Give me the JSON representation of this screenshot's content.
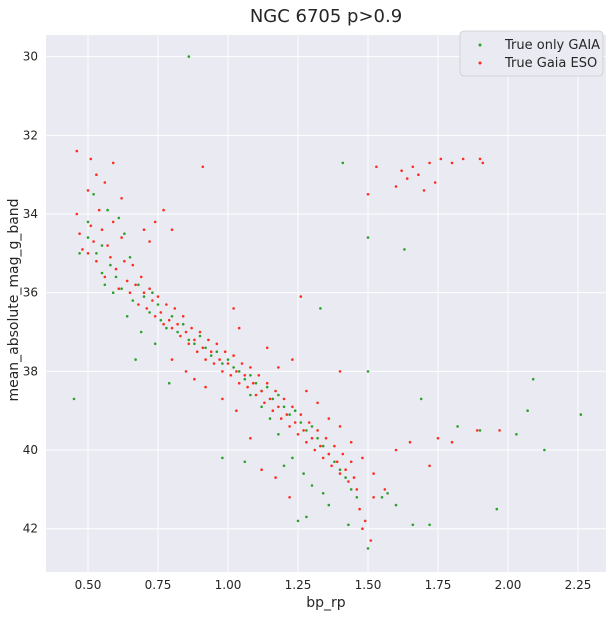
{
  "chart_data": {
    "type": "scatter",
    "title": "NGC 6705 p>0.9",
    "xlabel": "bp_rp",
    "ylabel": "mean_absolute_mag_g_band",
    "xlim": [
      0.35,
      2.35
    ],
    "ylim": [
      43.1,
      29.45
    ],
    "y_inverted": true,
    "x_ticks": [
      0.5,
      0.75,
      1.0,
      1.25,
      1.5,
      1.75,
      2.0,
      2.25
    ],
    "x_tick_labels": [
      "0.50",
      "0.75",
      "1.00",
      "1.25",
      "1.50",
      "1.75",
      "2.00",
      "2.25"
    ],
    "y_ticks": [
      30,
      32,
      34,
      36,
      38,
      40,
      42
    ],
    "y_tick_labels": [
      "30",
      "32",
      "34",
      "36",
      "38",
      "40",
      "42"
    ],
    "grid": true,
    "background": "#eaeaf2",
    "legend_position": "top-right",
    "series": [
      {
        "name": "True only GAIA",
        "color": "#2ca02c",
        "points": [
          [
            0.86,
            30.0
          ],
          [
            0.45,
            38.7
          ],
          [
            0.67,
            37.7
          ],
          [
            0.79,
            38.3
          ],
          [
            0.98,
            40.2
          ],
          [
            1.06,
            40.3
          ],
          [
            1.33,
            36.4
          ],
          [
            1.41,
            32.7
          ],
          [
            1.5,
            34.6
          ],
          [
            1.5,
            38.0
          ],
          [
            1.63,
            34.9
          ],
          [
            1.69,
            38.7
          ],
          [
            1.82,
            39.4
          ],
          [
            1.9,
            39.5
          ],
          [
            1.96,
            41.5
          ],
          [
            2.03,
            39.6
          ],
          [
            2.07,
            39.0
          ],
          [
            2.09,
            38.2
          ],
          [
            2.13,
            40.0
          ],
          [
            2.26,
            39.1
          ],
          [
            1.72,
            41.9
          ],
          [
            1.66,
            41.9
          ],
          [
            1.6,
            41.4
          ],
          [
            1.5,
            42.5
          ],
          [
            1.57,
            41.1
          ],
          [
            1.25,
            41.8
          ],
          [
            1.28,
            41.7
          ],
          [
            1.43,
            41.9
          ],
          [
            1.55,
            41.2
          ],
          [
            0.5,
            34.2
          ],
          [
            0.5,
            34.6
          ],
          [
            0.53,
            35.0
          ],
          [
            0.55,
            34.8
          ],
          [
            0.58,
            35.3
          ],
          [
            0.6,
            35.6
          ],
          [
            0.62,
            35.9
          ],
          [
            0.63,
            34.5
          ],
          [
            0.65,
            35.1
          ],
          [
            0.66,
            36.2
          ],
          [
            0.68,
            35.8
          ],
          [
            0.7,
            36.1
          ],
          [
            0.72,
            36.5
          ],
          [
            0.73,
            36.0
          ],
          [
            0.75,
            36.3
          ],
          [
            0.76,
            36.7
          ],
          [
            0.78,
            36.9
          ],
          [
            0.8,
            36.6
          ],
          [
            0.82,
            37.0
          ],
          [
            0.84,
            36.8
          ],
          [
            0.86,
            37.2
          ],
          [
            0.88,
            37.3
          ],
          [
            0.9,
            37.1
          ],
          [
            0.92,
            37.4
          ],
          [
            0.94,
            37.6
          ],
          [
            0.96,
            37.5
          ],
          [
            0.98,
            37.8
          ],
          [
            1.0,
            37.7
          ],
          [
            1.02,
            37.9
          ],
          [
            1.04,
            38.0
          ],
          [
            1.06,
            38.2
          ],
          [
            1.08,
            38.1
          ],
          [
            1.1,
            38.3
          ],
          [
            1.12,
            38.5
          ],
          [
            1.14,
            38.4
          ],
          [
            1.16,
            38.7
          ],
          [
            1.18,
            38.6
          ],
          [
            1.2,
            38.9
          ],
          [
            1.22,
            39.1
          ],
          [
            1.24,
            39.0
          ],
          [
            1.26,
            39.3
          ],
          [
            1.28,
            39.5
          ],
          [
            1.3,
            39.4
          ],
          [
            1.32,
            39.7
          ],
          [
            1.34,
            39.9
          ],
          [
            1.36,
            40.1
          ],
          [
            1.38,
            40.3
          ],
          [
            1.4,
            40.5
          ],
          [
            1.42,
            40.7
          ],
          [
            1.44,
            41.0
          ],
          [
            1.46,
            41.2
          ],
          [
            1.27,
            40.6
          ],
          [
            1.3,
            40.9
          ],
          [
            1.34,
            41.1
          ],
          [
            1.36,
            41.4
          ],
          [
            1.23,
            40.2
          ],
          [
            1.2,
            40.4
          ],
          [
            1.18,
            39.6
          ],
          [
            1.15,
            39.2
          ],
          [
            1.12,
            38.9
          ],
          [
            1.08,
            38.6
          ],
          [
            0.56,
            35.8
          ],
          [
            0.59,
            36.0
          ],
          [
            0.64,
            36.6
          ],
          [
            0.69,
            37.0
          ],
          [
            0.74,
            37.3
          ],
          [
            0.52,
            33.5
          ],
          [
            0.57,
            33.9
          ],
          [
            0.61,
            34.1
          ],
          [
            0.47,
            35.0
          ],
          [
            0.55,
            35.5
          ]
        ]
      },
      {
        "name": "True Gaia ESO",
        "color": "#ff2d20",
        "points": [
          [
            0.46,
            32.4
          ],
          [
            0.5,
            33.4
          ],
          [
            0.51,
            32.6
          ],
          [
            0.53,
            33.0
          ],
          [
            0.56,
            33.2
          ],
          [
            0.59,
            32.7
          ],
          [
            0.62,
            33.6
          ],
          [
            0.91,
            32.8
          ],
          [
            1.5,
            33.5
          ],
          [
            1.53,
            32.8
          ],
          [
            1.6,
            33.3
          ],
          [
            1.62,
            32.9
          ],
          [
            1.64,
            33.1
          ],
          [
            1.66,
            32.8
          ],
          [
            1.68,
            33.0
          ],
          [
            1.7,
            33.4
          ],
          [
            1.72,
            32.7
          ],
          [
            1.74,
            33.2
          ],
          [
            1.76,
            32.6
          ],
          [
            1.8,
            32.7
          ],
          [
            1.84,
            32.6
          ],
          [
            1.9,
            32.6
          ],
          [
            1.91,
            32.7
          ],
          [
            1.26,
            36.1
          ],
          [
            1.4,
            38.0
          ],
          [
            1.6,
            40.0
          ],
          [
            1.65,
            39.8
          ],
          [
            1.75,
            39.7
          ],
          [
            1.8,
            39.8
          ],
          [
            1.72,
            40.4
          ],
          [
            1.89,
            39.5
          ],
          [
            1.97,
            39.5
          ],
          [
            0.46,
            34.0
          ],
          [
            0.47,
            34.5
          ],
          [
            0.48,
            34.9
          ],
          [
            0.5,
            35.0
          ],
          [
            0.51,
            34.3
          ],
          [
            0.52,
            34.7
          ],
          [
            0.53,
            35.2
          ],
          [
            0.54,
            33.9
          ],
          [
            0.55,
            34.4
          ],
          [
            0.56,
            35.6
          ],
          [
            0.57,
            34.8
          ],
          [
            0.58,
            35.1
          ],
          [
            0.59,
            34.2
          ],
          [
            0.6,
            35.4
          ],
          [
            0.61,
            35.9
          ],
          [
            0.62,
            34.6
          ],
          [
            0.63,
            35.2
          ],
          [
            0.64,
            35.7
          ],
          [
            0.65,
            36.0
          ],
          [
            0.66,
            35.3
          ],
          [
            0.67,
            35.8
          ],
          [
            0.68,
            36.3
          ],
          [
            0.69,
            35.6
          ],
          [
            0.7,
            36.0
          ],
          [
            0.71,
            36.4
          ],
          [
            0.72,
            35.9
          ],
          [
            0.73,
            36.2
          ],
          [
            0.74,
            36.6
          ],
          [
            0.75,
            36.1
          ],
          [
            0.76,
            36.5
          ],
          [
            0.77,
            36.8
          ],
          [
            0.78,
            36.3
          ],
          [
            0.79,
            36.7
          ],
          [
            0.8,
            36.9
          ],
          [
            0.81,
            36.4
          ],
          [
            0.82,
            36.8
          ],
          [
            0.83,
            37.1
          ],
          [
            0.84,
            36.6
          ],
          [
            0.85,
            37.0
          ],
          [
            0.86,
            37.3
          ],
          [
            0.87,
            36.9
          ],
          [
            0.88,
            37.2
          ],
          [
            0.89,
            37.5
          ],
          [
            0.9,
            37.0
          ],
          [
            0.91,
            37.4
          ],
          [
            0.92,
            37.7
          ],
          [
            0.93,
            37.2
          ],
          [
            0.94,
            37.5
          ],
          [
            0.95,
            37.8
          ],
          [
            0.96,
            37.3
          ],
          [
            0.97,
            37.7
          ],
          [
            0.98,
            38.0
          ],
          [
            0.99,
            37.5
          ],
          [
            1.0,
            37.8
          ],
          [
            1.01,
            38.1
          ],
          [
            1.02,
            37.6
          ],
          [
            1.03,
            38.0
          ],
          [
            1.04,
            38.3
          ],
          [
            1.05,
            37.8
          ],
          [
            1.06,
            38.1
          ],
          [
            1.07,
            38.4
          ],
          [
            1.08,
            37.9
          ],
          [
            1.09,
            38.3
          ],
          [
            1.1,
            38.6
          ],
          [
            1.11,
            38.1
          ],
          [
            1.12,
            38.5
          ],
          [
            1.13,
            38.8
          ],
          [
            1.14,
            38.3
          ],
          [
            1.15,
            38.7
          ],
          [
            1.16,
            39.0
          ],
          [
            1.17,
            38.5
          ],
          [
            1.18,
            38.9
          ],
          [
            1.19,
            39.2
          ],
          [
            1.2,
            38.7
          ],
          [
            1.21,
            39.1
          ],
          [
            1.22,
            39.4
          ],
          [
            1.23,
            38.9
          ],
          [
            1.24,
            39.3
          ],
          [
            1.25,
            39.6
          ],
          [
            1.26,
            39.1
          ],
          [
            1.27,
            39.5
          ],
          [
            1.28,
            39.8
          ],
          [
            1.29,
            39.3
          ],
          [
            1.3,
            39.7
          ],
          [
            1.31,
            40.0
          ],
          [
            1.32,
            39.5
          ],
          [
            1.33,
            39.9
          ],
          [
            1.34,
            40.2
          ],
          [
            1.35,
            39.7
          ],
          [
            1.36,
            40.1
          ],
          [
            1.37,
            40.4
          ],
          [
            1.38,
            39.9
          ],
          [
            1.39,
            40.3
          ],
          [
            1.4,
            40.6
          ],
          [
            1.41,
            40.1
          ],
          [
            1.42,
            40.5
          ],
          [
            1.43,
            40.8
          ],
          [
            1.44,
            40.3
          ],
          [
            1.45,
            40.7
          ],
          [
            1.46,
            41.0
          ],
          [
            1.47,
            41.5
          ],
          [
            1.48,
            42.0
          ],
          [
            1.49,
            41.8
          ],
          [
            1.51,
            42.3
          ],
          [
            1.52,
            41.2
          ],
          [
            1.22,
            41.2
          ],
          [
            1.17,
            40.7
          ],
          [
            1.12,
            40.5
          ],
          [
            1.08,
            39.7
          ],
          [
            1.03,
            39.0
          ],
          [
            0.98,
            38.7
          ],
          [
            0.92,
            38.4
          ],
          [
            0.85,
            38.0
          ],
          [
            0.8,
            37.7
          ],
          [
            0.88,
            38.2
          ],
          [
            1.02,
            36.4
          ],
          [
            1.04,
            36.9
          ],
          [
            0.72,
            34.7
          ],
          [
            0.7,
            34.4
          ],
          [
            0.74,
            34.2
          ],
          [
            0.77,
            33.9
          ],
          [
            0.8,
            34.4
          ],
          [
            1.14,
            37.4
          ],
          [
            1.18,
            37.9
          ],
          [
            1.23,
            37.7
          ],
          [
            1.28,
            38.5
          ],
          [
            1.32,
            38.8
          ],
          [
            1.36,
            39.2
          ],
          [
            1.4,
            39.4
          ],
          [
            1.44,
            39.8
          ],
          [
            1.48,
            40.2
          ],
          [
            1.52,
            40.6
          ],
          [
            1.56,
            41.0
          ]
        ]
      }
    ]
  }
}
